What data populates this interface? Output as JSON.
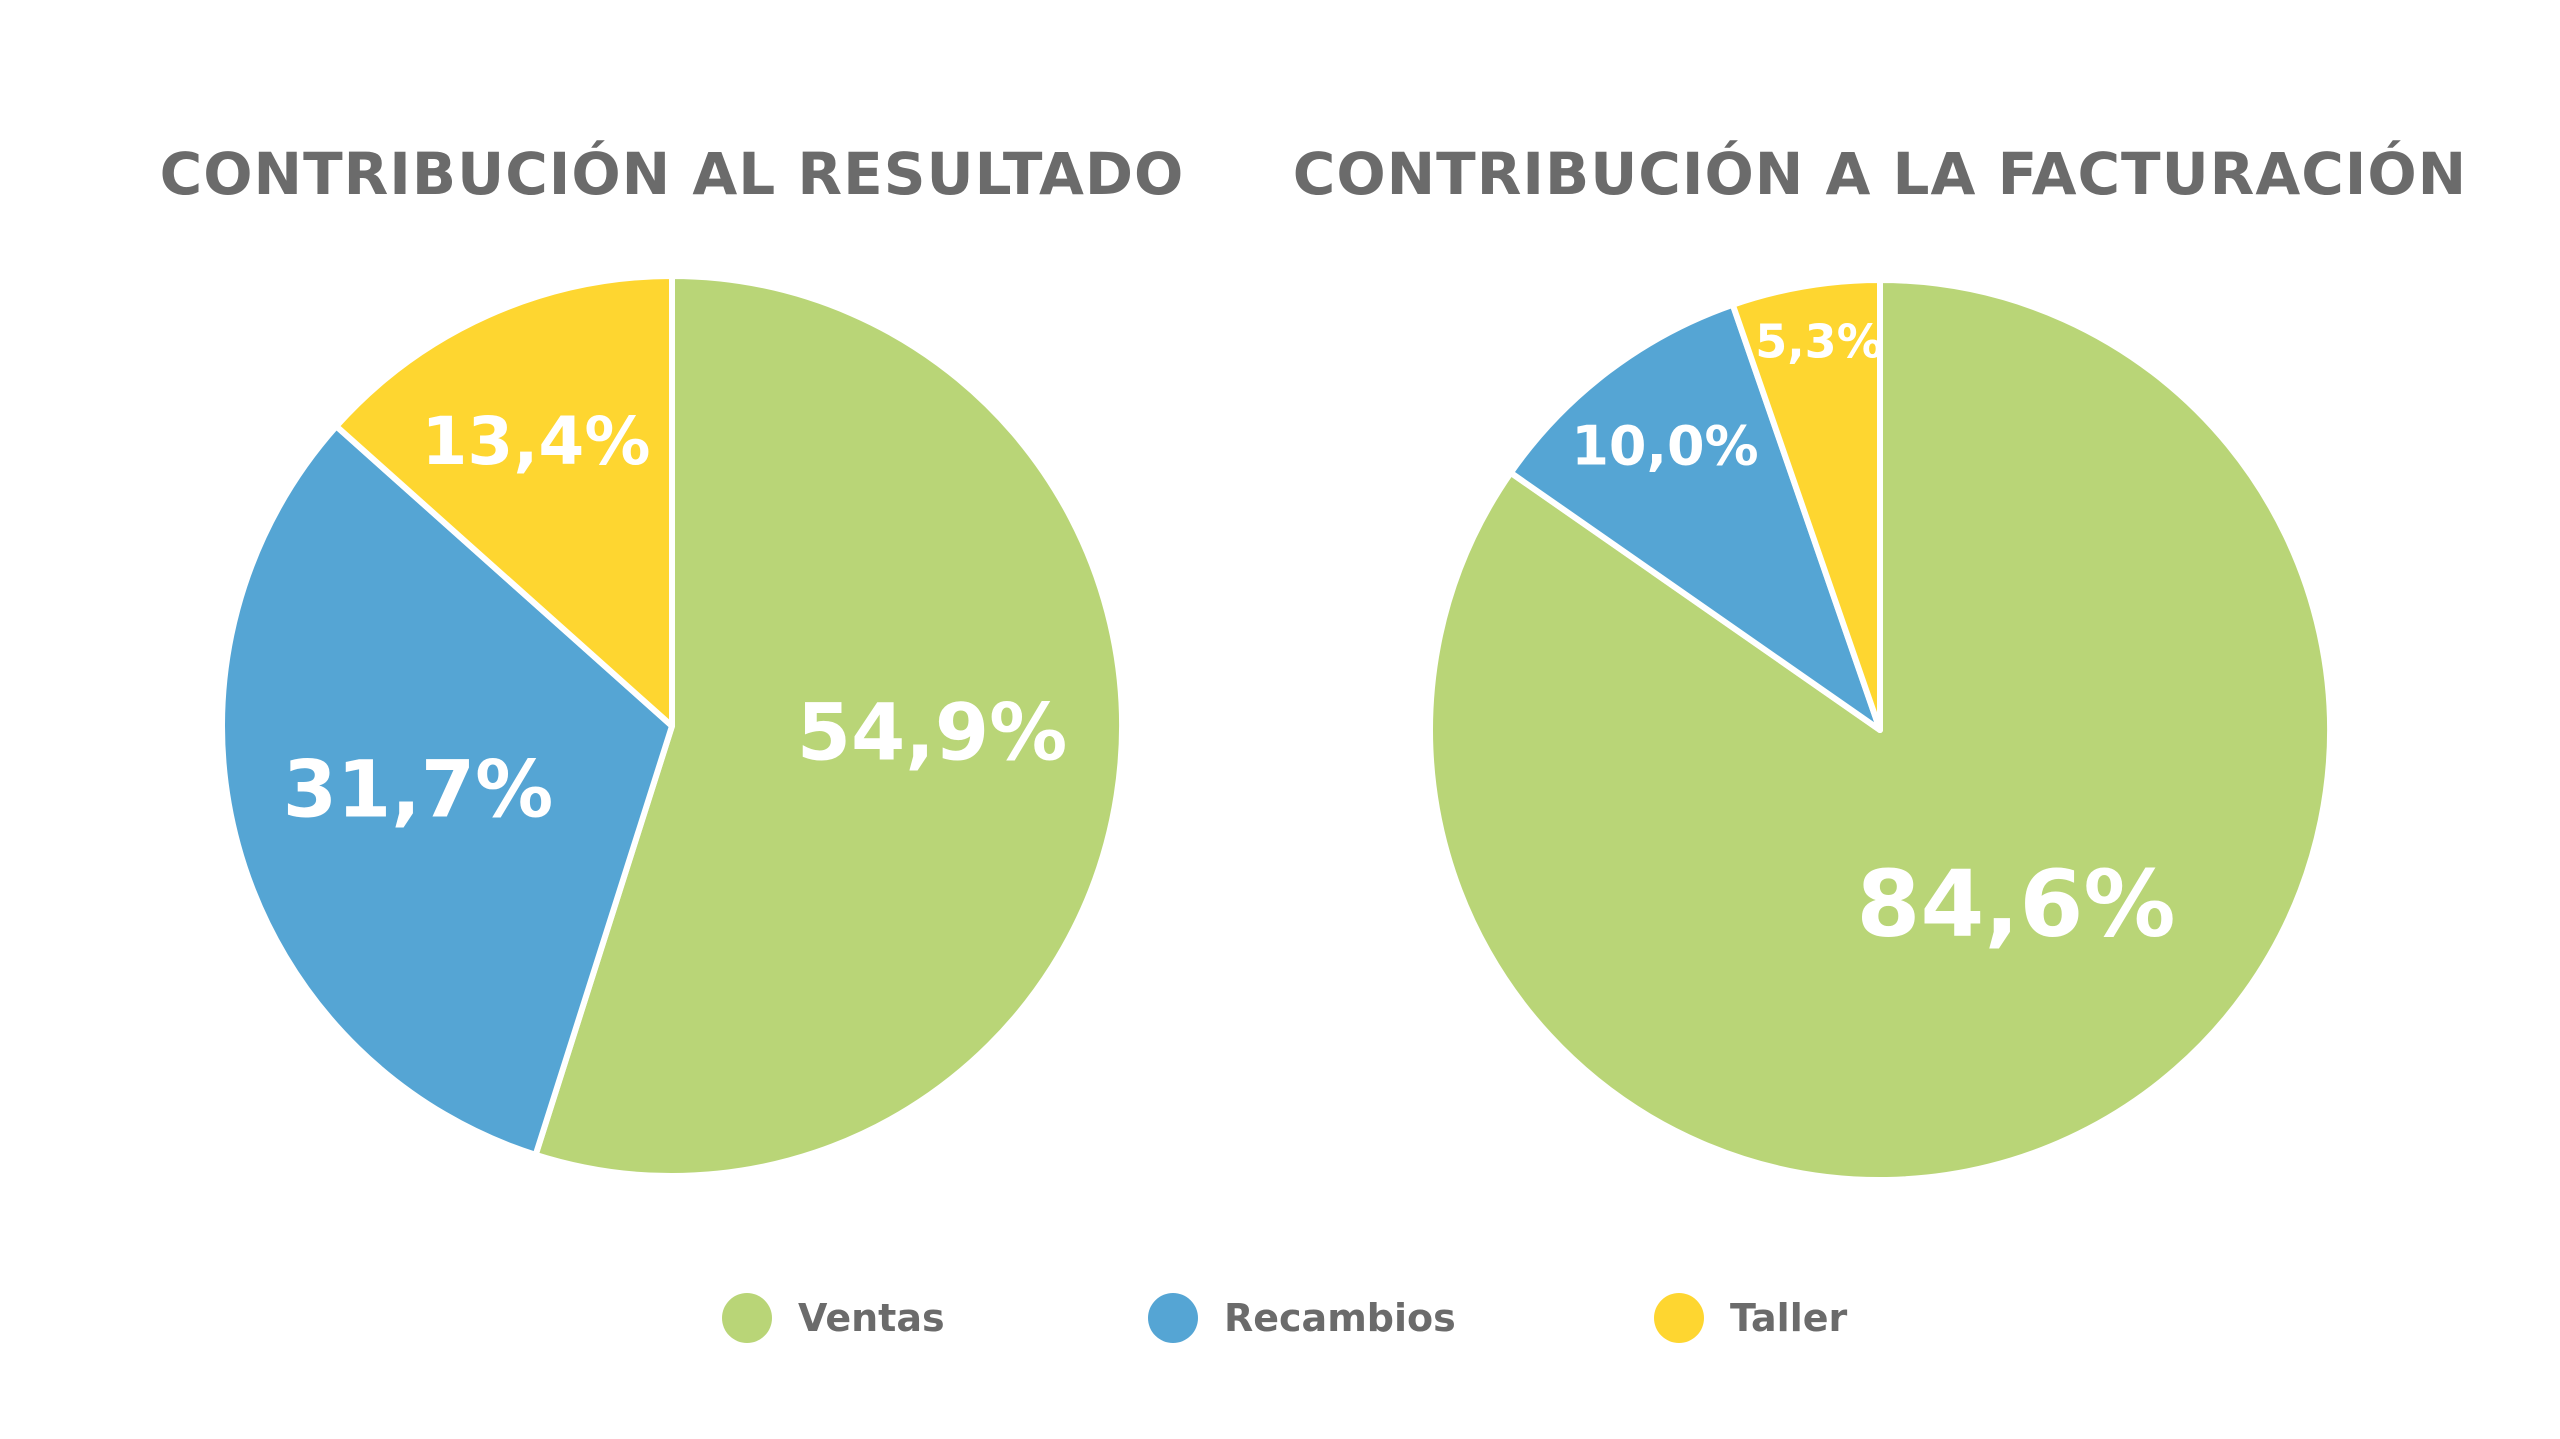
{
  "chart_data": [
    {
      "type": "pie",
      "title": "CONTRIBUCIÓN AL RESULTADO",
      "categories": [
        "Ventas",
        "Recambios",
        "Taller"
      ],
      "values": [
        54.9,
        31.7,
        13.4
      ],
      "labels": [
        "54,9%",
        "31,7%",
        "13,4%"
      ],
      "colors": [
        "#b9d577",
        "#55a5d4",
        "#fed630"
      ]
    },
    {
      "type": "pie",
      "title": "CONTRIBUCIÓN A LA FACTURACIÓN",
      "categories": [
        "Ventas",
        "Recambios",
        "Taller"
      ],
      "values": [
        84.6,
        10.0,
        5.3
      ],
      "labels": [
        "84,6%",
        "10,0%",
        "5,3%"
      ],
      "colors": [
        "#b9d577",
        "#55a5d4",
        "#fed630"
      ]
    }
  ],
  "legend": {
    "placement": "bottom",
    "items": [
      {
        "label": "Ventas",
        "color": "#b9d577"
      },
      {
        "label": "Recambios",
        "color": "#55a5d4"
      },
      {
        "label": "Taller",
        "color": "#fed630"
      }
    ]
  }
}
